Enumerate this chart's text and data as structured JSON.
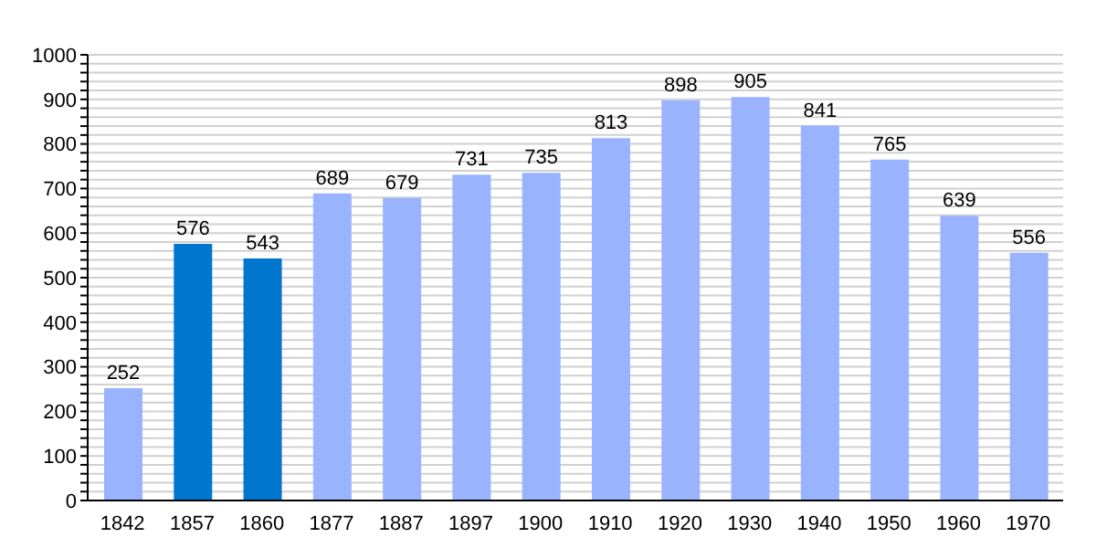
{
  "chart_data": {
    "type": "bar",
    "categories": [
      "1842",
      "1857",
      "1860",
      "1877",
      "1887",
      "1897",
      "1900",
      "1910",
      "1920",
      "1930",
      "1940",
      "1950",
      "1960",
      "1970"
    ],
    "values": [
      252,
      576,
      543,
      689,
      679,
      731,
      735,
      813,
      898,
      905,
      841,
      765,
      639,
      556
    ],
    "colors": [
      "#99b3ff",
      "#0077cc",
      "#0077cc",
      "#99b3ff",
      "#99b3ff",
      "#99b3ff",
      "#99b3ff",
      "#99b3ff",
      "#99b3ff",
      "#99b3ff",
      "#99b3ff",
      "#99b3ff",
      "#99b3ff",
      "#99b3ff"
    ],
    "ylim": [
      0,
      1000
    ],
    "yticks": [
      0,
      {
        "value": 20,
        "label": null
      },
      {
        "value": 40,
        "label": null
      },
      {
        "value": 60,
        "label": null
      },
      {
        "value": 80,
        "label": null
      },
      100,
      {
        "value": 120,
        "label": null
      },
      {
        "value": 140,
        "label": null
      },
      {
        "value": 160,
        "label": null
      },
      {
        "value": 180,
        "label": null
      },
      200,
      {
        "value": 220,
        "label": null
      },
      {
        "value": 240,
        "label": null
      },
      {
        "value": 260,
        "label": null
      },
      {
        "value": 280,
        "label": null
      },
      300,
      {
        "value": 320,
        "label": null
      },
      {
        "value": 340,
        "label": null
      },
      {
        "value": 360,
        "label": null
      },
      {
        "value": 380,
        "label": null
      },
      400,
      {
        "value": 420,
        "label": null
      },
      {
        "value": 440,
        "label": null
      },
      {
        "value": 460,
        "label": null
      },
      {
        "value": 480,
        "label": null
      },
      500,
      {
        "value": 520,
        "label": null
      },
      {
        "value": 540,
        "label": null
      },
      {
        "value": 560,
        "label": null
      },
      {
        "value": 580,
        "label": null
      },
      600,
      {
        "value": 620,
        "label": null
      },
      {
        "value": 640,
        "label": null
      },
      {
        "value": 660,
        "label": null
      },
      {
        "value": 680,
        "label": null
      },
      700,
      {
        "value": 720,
        "label": null
      },
      {
        "value": 740,
        "label": null
      },
      {
        "value": 760,
        "label": null
      },
      {
        "value": 780,
        "label": null
      },
      800,
      {
        "value": 820,
        "label": null
      },
      {
        "value": 840,
        "label": null
      },
      {
        "value": 860,
        "label": null
      },
      {
        "value": 880,
        "label": null
      },
      900,
      {
        "value": 920,
        "label": null
      },
      {
        "value": 940,
        "label": null
      },
      {
        "value": 960,
        "label": null
      },
      {
        "value": 980,
        "label": null
      },
      1000
    ],
    "grid": "y",
    "data_labels": true
  }
}
